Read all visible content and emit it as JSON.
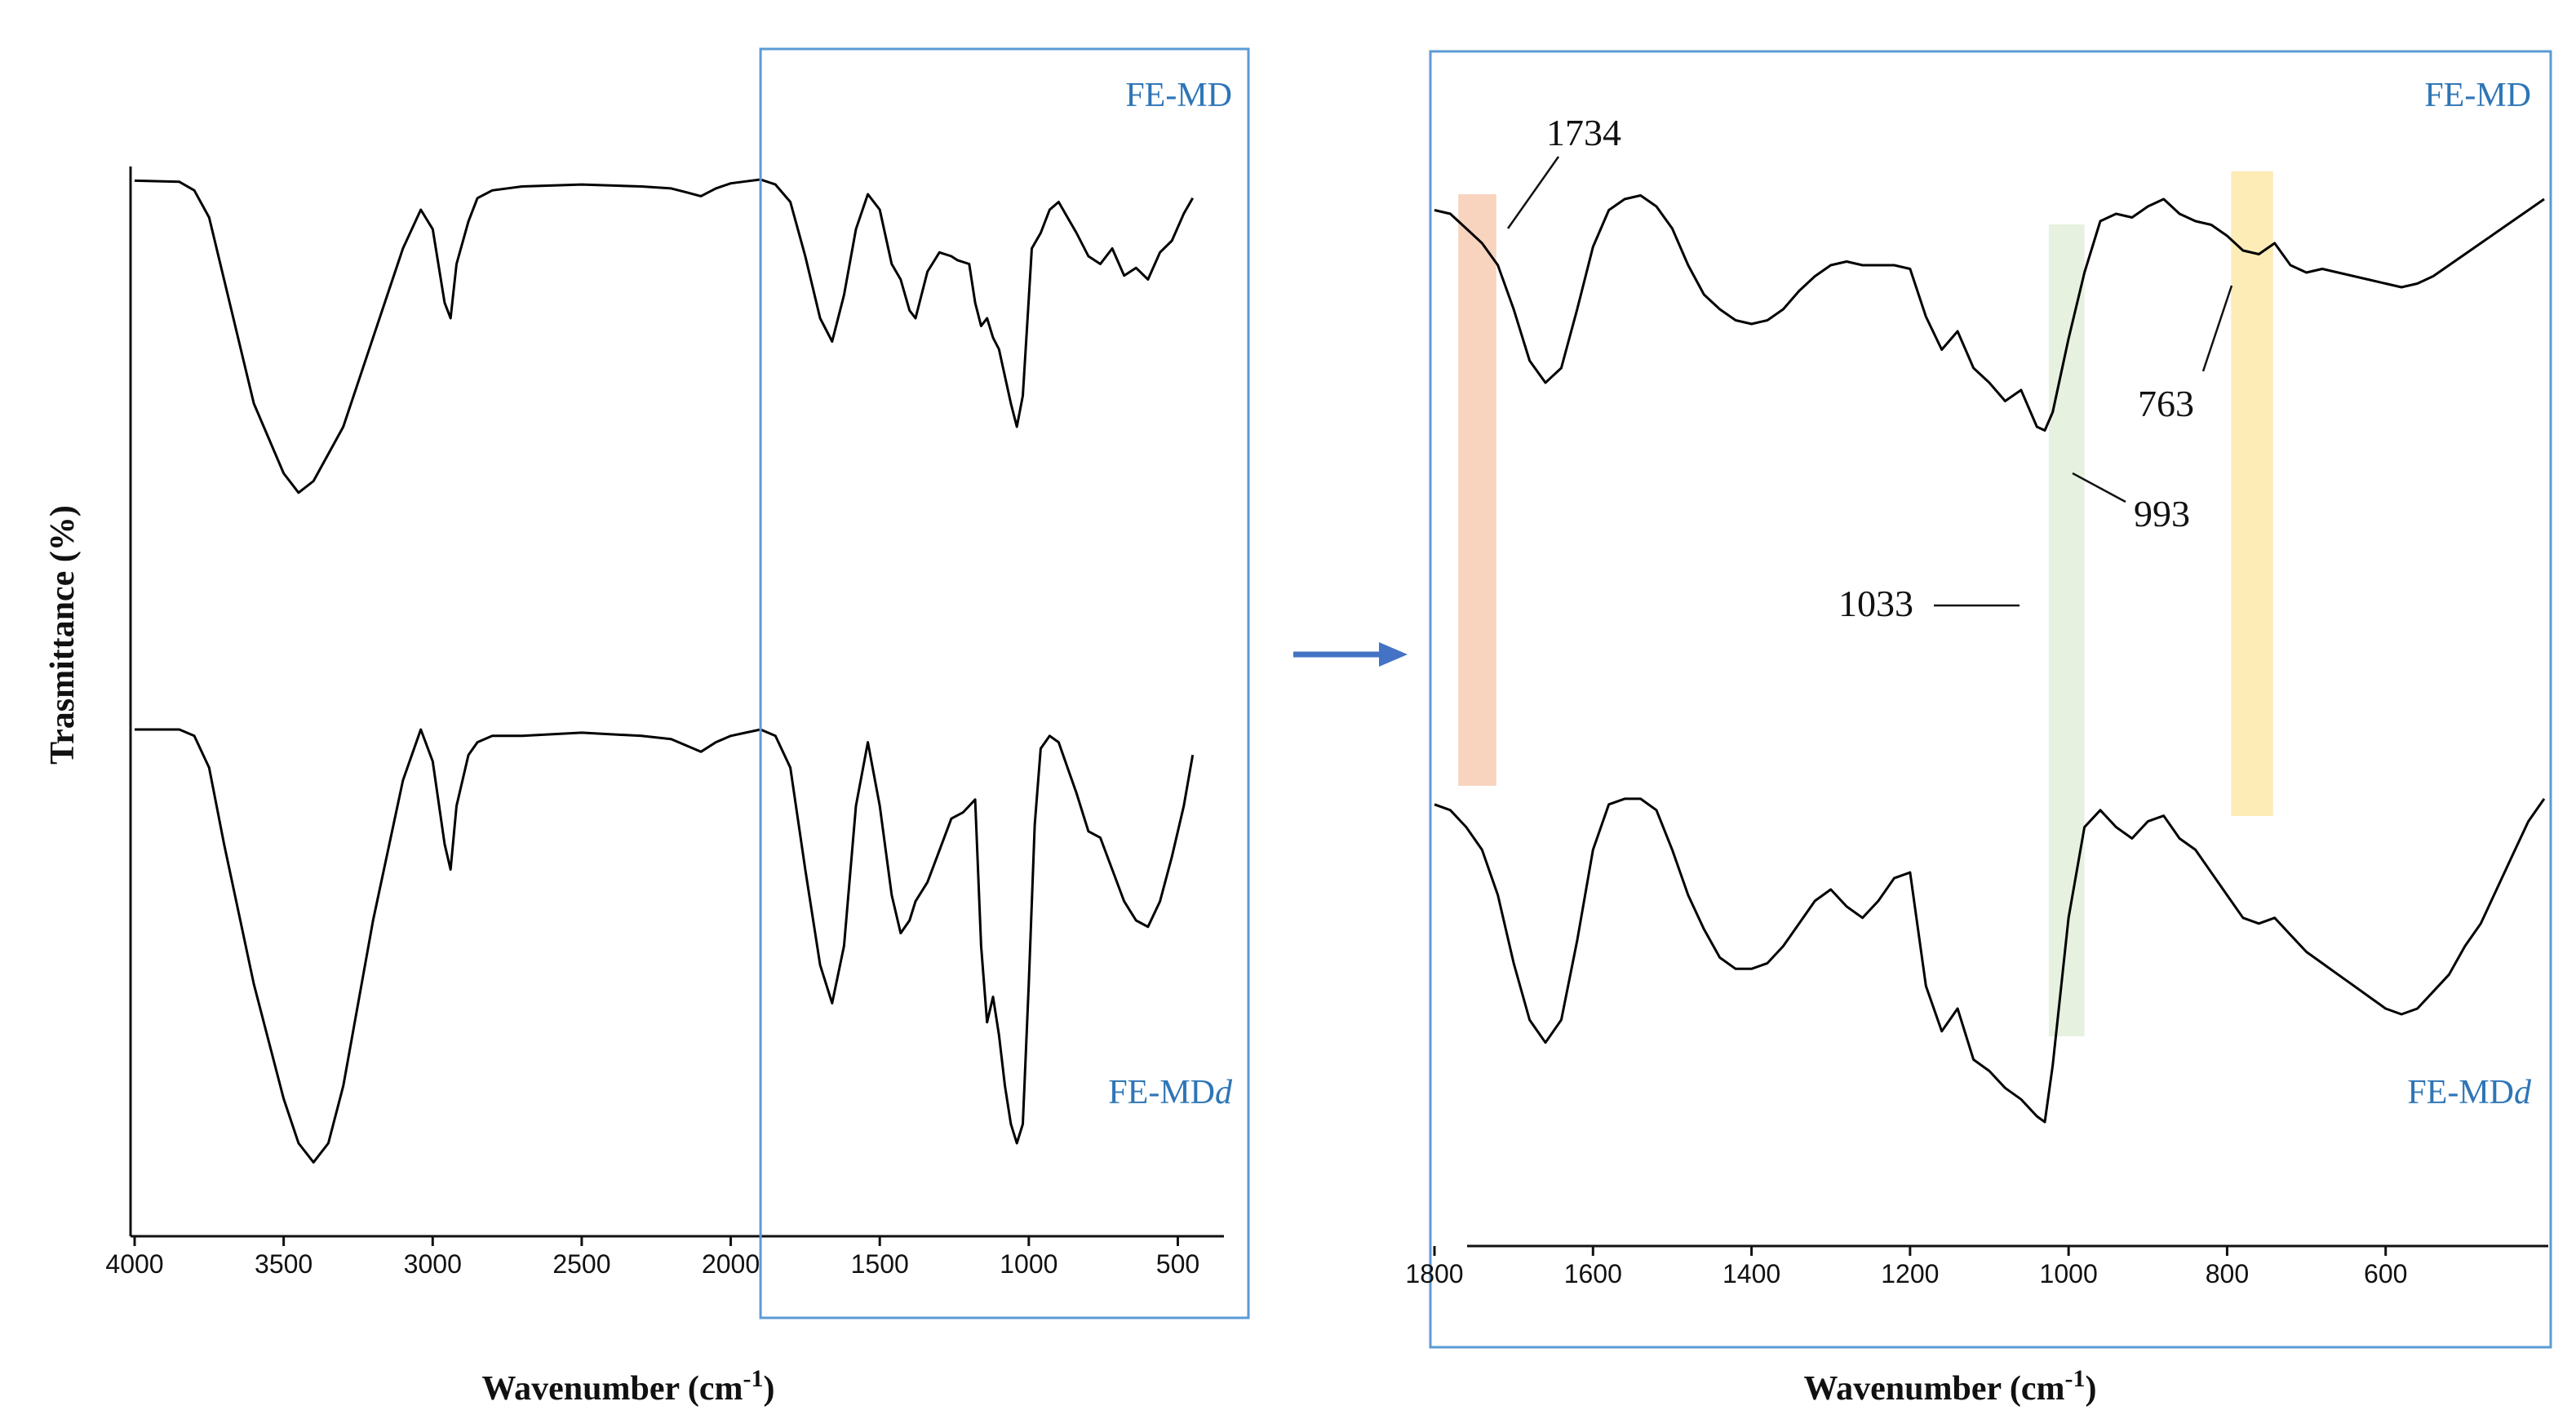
{
  "chart_data": [
    {
      "type": "line",
      "title": "",
      "xlabel": "Wavenumber (cm",
      "xlabel_sup": "-1",
      "xlabel_end": ")",
      "ylabel": "Trasmittance (%)",
      "xlim": [
        4000,
        400
      ],
      "ylim": [
        0,
        100
      ],
      "x_ticks": [
        4000,
        3500,
        3000,
        2500,
        2000,
        1500,
        1000,
        500
      ],
      "x_tick_labels": [
        "4000",
        "3500",
        "3000",
        "2500",
        "2000",
        "1500",
        "1000",
        "500"
      ],
      "zoom_box": {
        "x_range": [
          1900,
          400
        ]
      },
      "series": [
        {
          "name": "FE-MD",
          "label_text": "FE-MD",
          "x": [
            4000,
            3850,
            3800,
            3750,
            3700,
            3600,
            3500,
            3450,
            3400,
            3300,
            3200,
            3100,
            3040,
            3000,
            2960,
            2940,
            2920,
            2880,
            2850,
            2800,
            2700,
            2500,
            2300,
            2200,
            2150,
            2100,
            2050,
            2000,
            1950,
            1900,
            1850,
            1800,
            1750,
            1700,
            1660,
            1620,
            1580,
            1540,
            1500,
            1460,
            1430,
            1400,
            1380,
            1340,
            1300,
            1260,
            1240,
            1200,
            1180,
            1160,
            1140,
            1120,
            1100,
            1080,
            1060,
            1040,
            1020,
            1000,
            990,
            960,
            930,
            900,
            870,
            840,
            800,
            760,
            720,
            680,
            640,
            600,
            560,
            520,
            480,
            450
          ],
          "y": [
            95.5,
            95.2,
            93,
            86,
            70,
            38,
            20,
            15,
            18,
            32,
            55,
            78,
            88,
            83,
            64,
            60,
            74,
            85,
            91,
            93,
            94,
            94.5,
            94,
            93.5,
            92.5,
            91.5,
            93.5,
            94.8,
            95.3,
            95.8,
            94.5,
            90,
            76,
            60,
            54,
            66,
            83,
            92,
            88,
            74,
            70,
            62,
            60,
            72,
            77,
            76,
            75,
            74,
            64,
            58,
            60,
            55,
            52,
            45,
            38,
            32,
            40,
            65,
            78,
            82,
            88,
            90,
            86,
            82,
            76,
            74,
            78,
            71,
            73,
            70,
            77,
            80,
            87,
            91
          ]
        },
        {
          "name": "FE-MDd",
          "label_text": "FE-MD",
          "label_italic_suffix": "d",
          "x": [
            4000,
            3850,
            3800,
            3750,
            3700,
            3600,
            3500,
            3450,
            3400,
            3350,
            3300,
            3200,
            3100,
            3040,
            3000,
            2960,
            2940,
            2920,
            2880,
            2850,
            2800,
            2700,
            2500,
            2300,
            2200,
            2150,
            2100,
            2050,
            2000,
            1950,
            1900,
            1850,
            1800,
            1750,
            1700,
            1660,
            1620,
            1580,
            1540,
            1500,
            1460,
            1430,
            1400,
            1380,
            1340,
            1300,
            1260,
            1220,
            1200,
            1180,
            1160,
            1140,
            1120,
            1100,
            1080,
            1060,
            1040,
            1020,
            1000,
            980,
            960,
            930,
            900,
            870,
            840,
            800,
            760,
            720,
            680,
            640,
            600,
            560,
            520,
            480,
            450
          ],
          "y": [
            70,
            70,
            69,
            64,
            52,
            30,
            12,
            5,
            2,
            5,
            14,
            40,
            62,
            70,
            65,
            52,
            48,
            58,
            66,
            68,
            69,
            69,
            69.5,
            69,
            68.5,
            67.5,
            66.5,
            68,
            69,
            69.5,
            70,
            69,
            64,
            48,
            33,
            27,
            36,
            58,
            68,
            58,
            44,
            38,
            40,
            43,
            46,
            51,
            56,
            57,
            58,
            59,
            36,
            24,
            28,
            22,
            14,
            8,
            5,
            8,
            30,
            55,
            67,
            69,
            68,
            64,
            60,
            54,
            53,
            48,
            43,
            40,
            39,
            43,
            50,
            58,
            66
          ]
        }
      ]
    },
    {
      "type": "line",
      "title": "",
      "xlabel": "Wavenumber (cm",
      "xlabel_sup": "-1",
      "xlabel_end": ")",
      "xlim": [
        1800,
        400
      ],
      "ylim": [
        0,
        100
      ],
      "x_ticks": [
        1800,
        1600,
        1400,
        1200,
        1000,
        800,
        600
      ],
      "x_tick_labels": [
        "1800",
        "1600",
        "1400",
        "1200",
        "1000",
        "800",
        "600"
      ],
      "highlight_bands": [
        {
          "name": "band-1734",
          "x_range": [
            1770,
            1722
          ],
          "color": "#f7cdb4"
        },
        {
          "name": "band-993",
          "x_range": [
            1025,
            980
          ],
          "color": "#e2efd9"
        },
        {
          "name": "band-763",
          "x_range": [
            795,
            742
          ],
          "color": "#fde9a9"
        }
      ],
      "annotations": [
        {
          "text": "1734",
          "x": 1734
        },
        {
          "text": "993",
          "x": 993
        },
        {
          "text": "1033",
          "x": 1033
        },
        {
          "text": "763",
          "x": 763
        }
      ],
      "series": [
        {
          "name": "FE-MD",
          "label_text": "FE-MD",
          "x": [
            1800,
            1780,
            1760,
            1740,
            1720,
            1700,
            1680,
            1660,
            1640,
            1620,
            1600,
            1580,
            1560,
            1540,
            1520,
            1500,
            1480,
            1460,
            1440,
            1420,
            1400,
            1380,
            1360,
            1340,
            1320,
            1300,
            1280,
            1260,
            1240,
            1220,
            1200,
            1180,
            1160,
            1140,
            1120,
            1100,
            1080,
            1060,
            1040,
            1030,
            1020,
            1000,
            980,
            960,
            940,
            920,
            900,
            880,
            860,
            840,
            820,
            800,
            780,
            760,
            740,
            720,
            700,
            680,
            660,
            640,
            620,
            600,
            580,
            560,
            540,
            520,
            500,
            480,
            460,
            440,
            420,
            400
          ],
          "y": [
            85,
            84,
            80,
            76,
            70,
            58,
            44,
            38,
            42,
            58,
            75,
            85,
            88,
            89,
            86,
            80,
            70,
            62,
            58,
            55,
            54,
            55,
            58,
            63,
            67,
            70,
            71,
            70,
            70,
            70,
            69,
            56,
            47,
            52,
            42,
            38,
            33,
            36,
            26,
            25,
            30,
            50,
            68,
            82,
            84,
            83,
            86,
            88,
            84,
            82,
            81,
            78,
            74,
            73,
            76,
            70,
            68,
            69,
            68,
            67,
            66,
            65,
            64,
            65,
            67,
            70,
            73,
            76,
            79,
            82,
            85,
            88
          ]
        },
        {
          "name": "FE-MDd",
          "label_text": "FE-MD",
          "label_italic_suffix": "d",
          "x": [
            1800,
            1780,
            1760,
            1740,
            1720,
            1700,
            1680,
            1660,
            1640,
            1620,
            1600,
            1580,
            1560,
            1540,
            1520,
            1500,
            1480,
            1460,
            1440,
            1420,
            1400,
            1380,
            1360,
            1340,
            1320,
            1300,
            1280,
            1260,
            1240,
            1220,
            1200,
            1180,
            1160,
            1140,
            1120,
            1100,
            1080,
            1060,
            1040,
            1030,
            1020,
            1000,
            980,
            960,
            940,
            920,
            900,
            880,
            860,
            840,
            820,
            800,
            780,
            760,
            740,
            720,
            700,
            680,
            660,
            640,
            620,
            600,
            580,
            560,
            540,
            520,
            500,
            480,
            460,
            440,
            420,
            400
          ],
          "y": [
            56,
            55,
            52,
            48,
            40,
            28,
            18,
            14,
            18,
            32,
            48,
            56,
            57,
            57,
            55,
            48,
            40,
            34,
            29,
            27,
            27,
            28,
            31,
            35,
            39,
            41,
            38,
            36,
            39,
            43,
            44,
            24,
            16,
            20,
            11,
            9,
            6,
            4,
            1,
            0,
            10,
            36,
            52,
            55,
            52,
            50,
            53,
            54,
            50,
            48,
            44,
            40,
            36,
            35,
            36,
            33,
            30,
            28,
            26,
            24,
            22,
            20,
            19,
            20,
            23,
            26,
            31,
            35,
            41,
            47,
            53,
            57
          ]
        }
      ]
    }
  ],
  "arrow": {
    "direction": "right",
    "color": "#4472c4"
  }
}
